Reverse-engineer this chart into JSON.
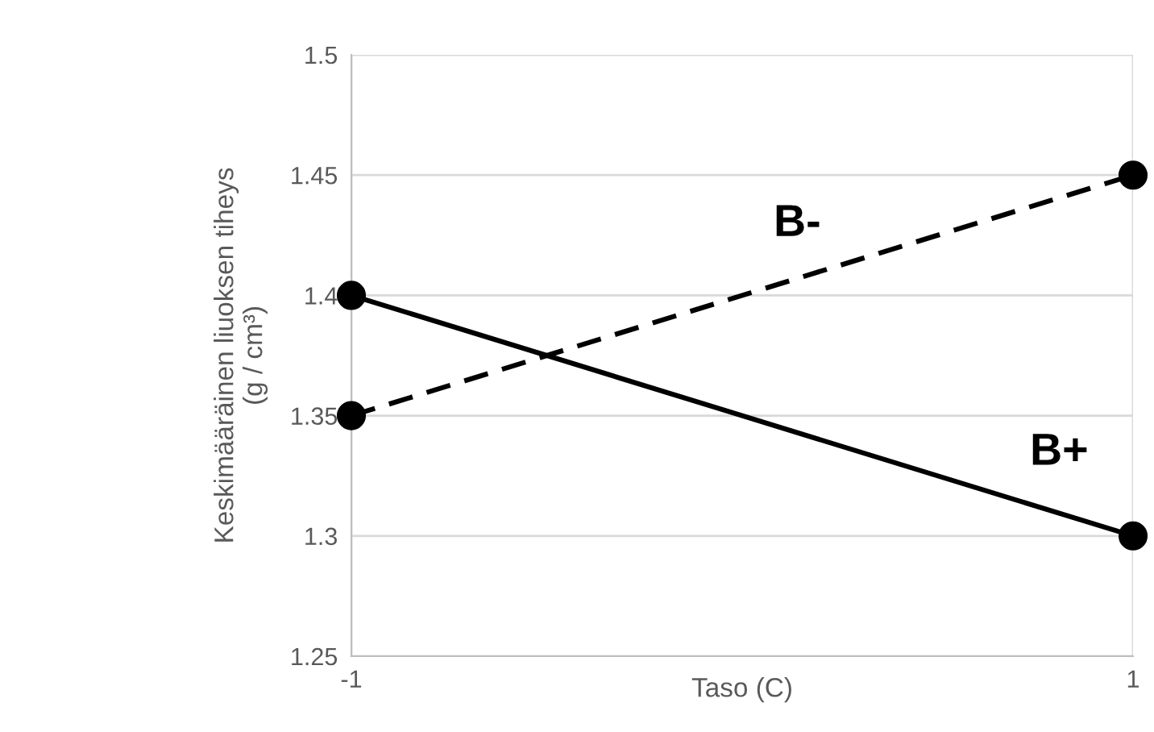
{
  "chart_data": {
    "type": "line",
    "xlabel": "Taso (C)",
    "ylabel": "Keskimääräinen liuoksen tiheys\n(g / cm³)",
    "x": [
      -1,
      1
    ],
    "xlim": [
      -1,
      1
    ],
    "xticks": [
      -1,
      1
    ],
    "ylim": [
      1.25,
      1.5
    ],
    "yticks": [
      1.25,
      1.3,
      1.35,
      1.4,
      1.45,
      1.5
    ],
    "grid": true,
    "marker": "circle",
    "legend": false,
    "series": [
      {
        "name": "B+",
        "color": "#000000",
        "line_style": "solid",
        "values": [
          1.4,
          1.3
        ]
      },
      {
        "name": "B-",
        "color": "#000000",
        "line_style": "dashed",
        "values": [
          1.35,
          1.45
        ]
      }
    ]
  }
}
